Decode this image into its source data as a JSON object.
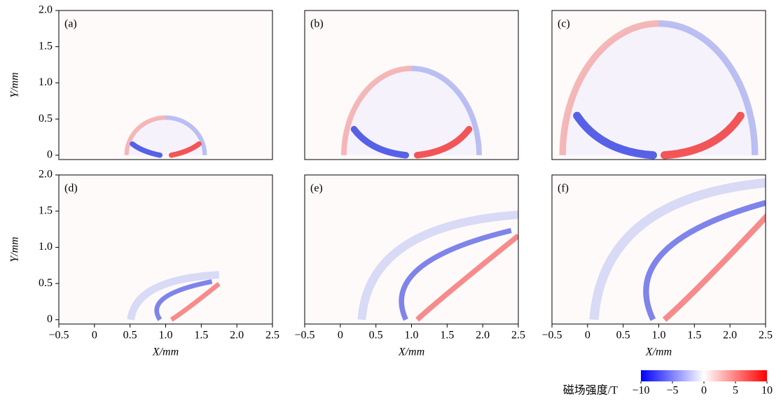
{
  "chart_data": [
    {
      "type": "heatmap",
      "label": "(a)",
      "xlim": [
        -0.5,
        2.5
      ],
      "ylim": [
        -0.06,
        2.0
      ],
      "yticks": [
        0,
        0.5,
        {
          "value": 1.0,
          "label": "1.0"
        },
        1.5,
        {
          "value": 2.0,
          "label": "2.0"
        }
      ],
      "ylabel": "Y/mm"
    },
    {
      "type": "heatmap",
      "label": "(b)",
      "xlim": [
        -0.5,
        2.5
      ],
      "ylim": [
        -0.06,
        2.0
      ]
    },
    {
      "type": "heatmap",
      "label": "(c)",
      "xlim": [
        -0.5,
        2.5
      ],
      "ylim": [
        -0.06,
        2.0
      ]
    },
    {
      "type": "heatmap",
      "label": "(d)",
      "xlim": [
        -0.5,
        2.5
      ],
      "ylim": [
        -0.06,
        2.0
      ],
      "yticks": [
        0,
        0.5,
        {
          "value": 1.0,
          "label": "1.0"
        },
        1.5,
        {
          "value": 2.0,
          "label": "2.0"
        }
      ],
      "ylabel": "Y/mm",
      "xticks": [
        {
          "value": -0.5,
          "label": "−0.5"
        },
        0,
        0.5,
        {
          "value": 1.0,
          "label": "1.0"
        },
        1.5,
        {
          "value": 2.0,
          "label": "2.0"
        },
        2.5
      ],
      "xlabel": "X/mm"
    },
    {
      "type": "heatmap",
      "label": "(e)",
      "xlim": [
        -0.5,
        2.5
      ],
      "ylim": [
        -0.06,
        2.0
      ],
      "xticks": [
        {
          "value": -0.5,
          "label": "−0.5"
        },
        0,
        0.5,
        {
          "value": 1.0,
          "label": "1.0"
        },
        1.5,
        {
          "value": 2.0,
          "label": "2.0"
        },
        2.5
      ],
      "xlabel": "X/mm"
    },
    {
      "type": "heatmap",
      "label": "(f)",
      "xlim": [
        -0.5,
        2.5
      ],
      "ylim": [
        -0.06,
        2.0
      ],
      "xticks": [
        {
          "value": -0.5,
          "label": "−0.5"
        },
        0,
        0.5,
        {
          "value": 1.0,
          "label": "1.0"
        },
        1.5,
        {
          "value": 2.0,
          "label": "2.0"
        },
        2.5
      ],
      "xlabel": "X/mm"
    }
  ],
  "colorbar": {
    "title": "磁场强度/T",
    "clim": [
      -10,
      10
    ],
    "ticks": [
      {
        "value": -10,
        "label": "−10"
      },
      {
        "value": -5,
        "label": "−5"
      },
      0,
      5,
      10
    ],
    "colors": [
      "#0000ff",
      "#ffffff",
      "#ff0000"
    ]
  }
}
